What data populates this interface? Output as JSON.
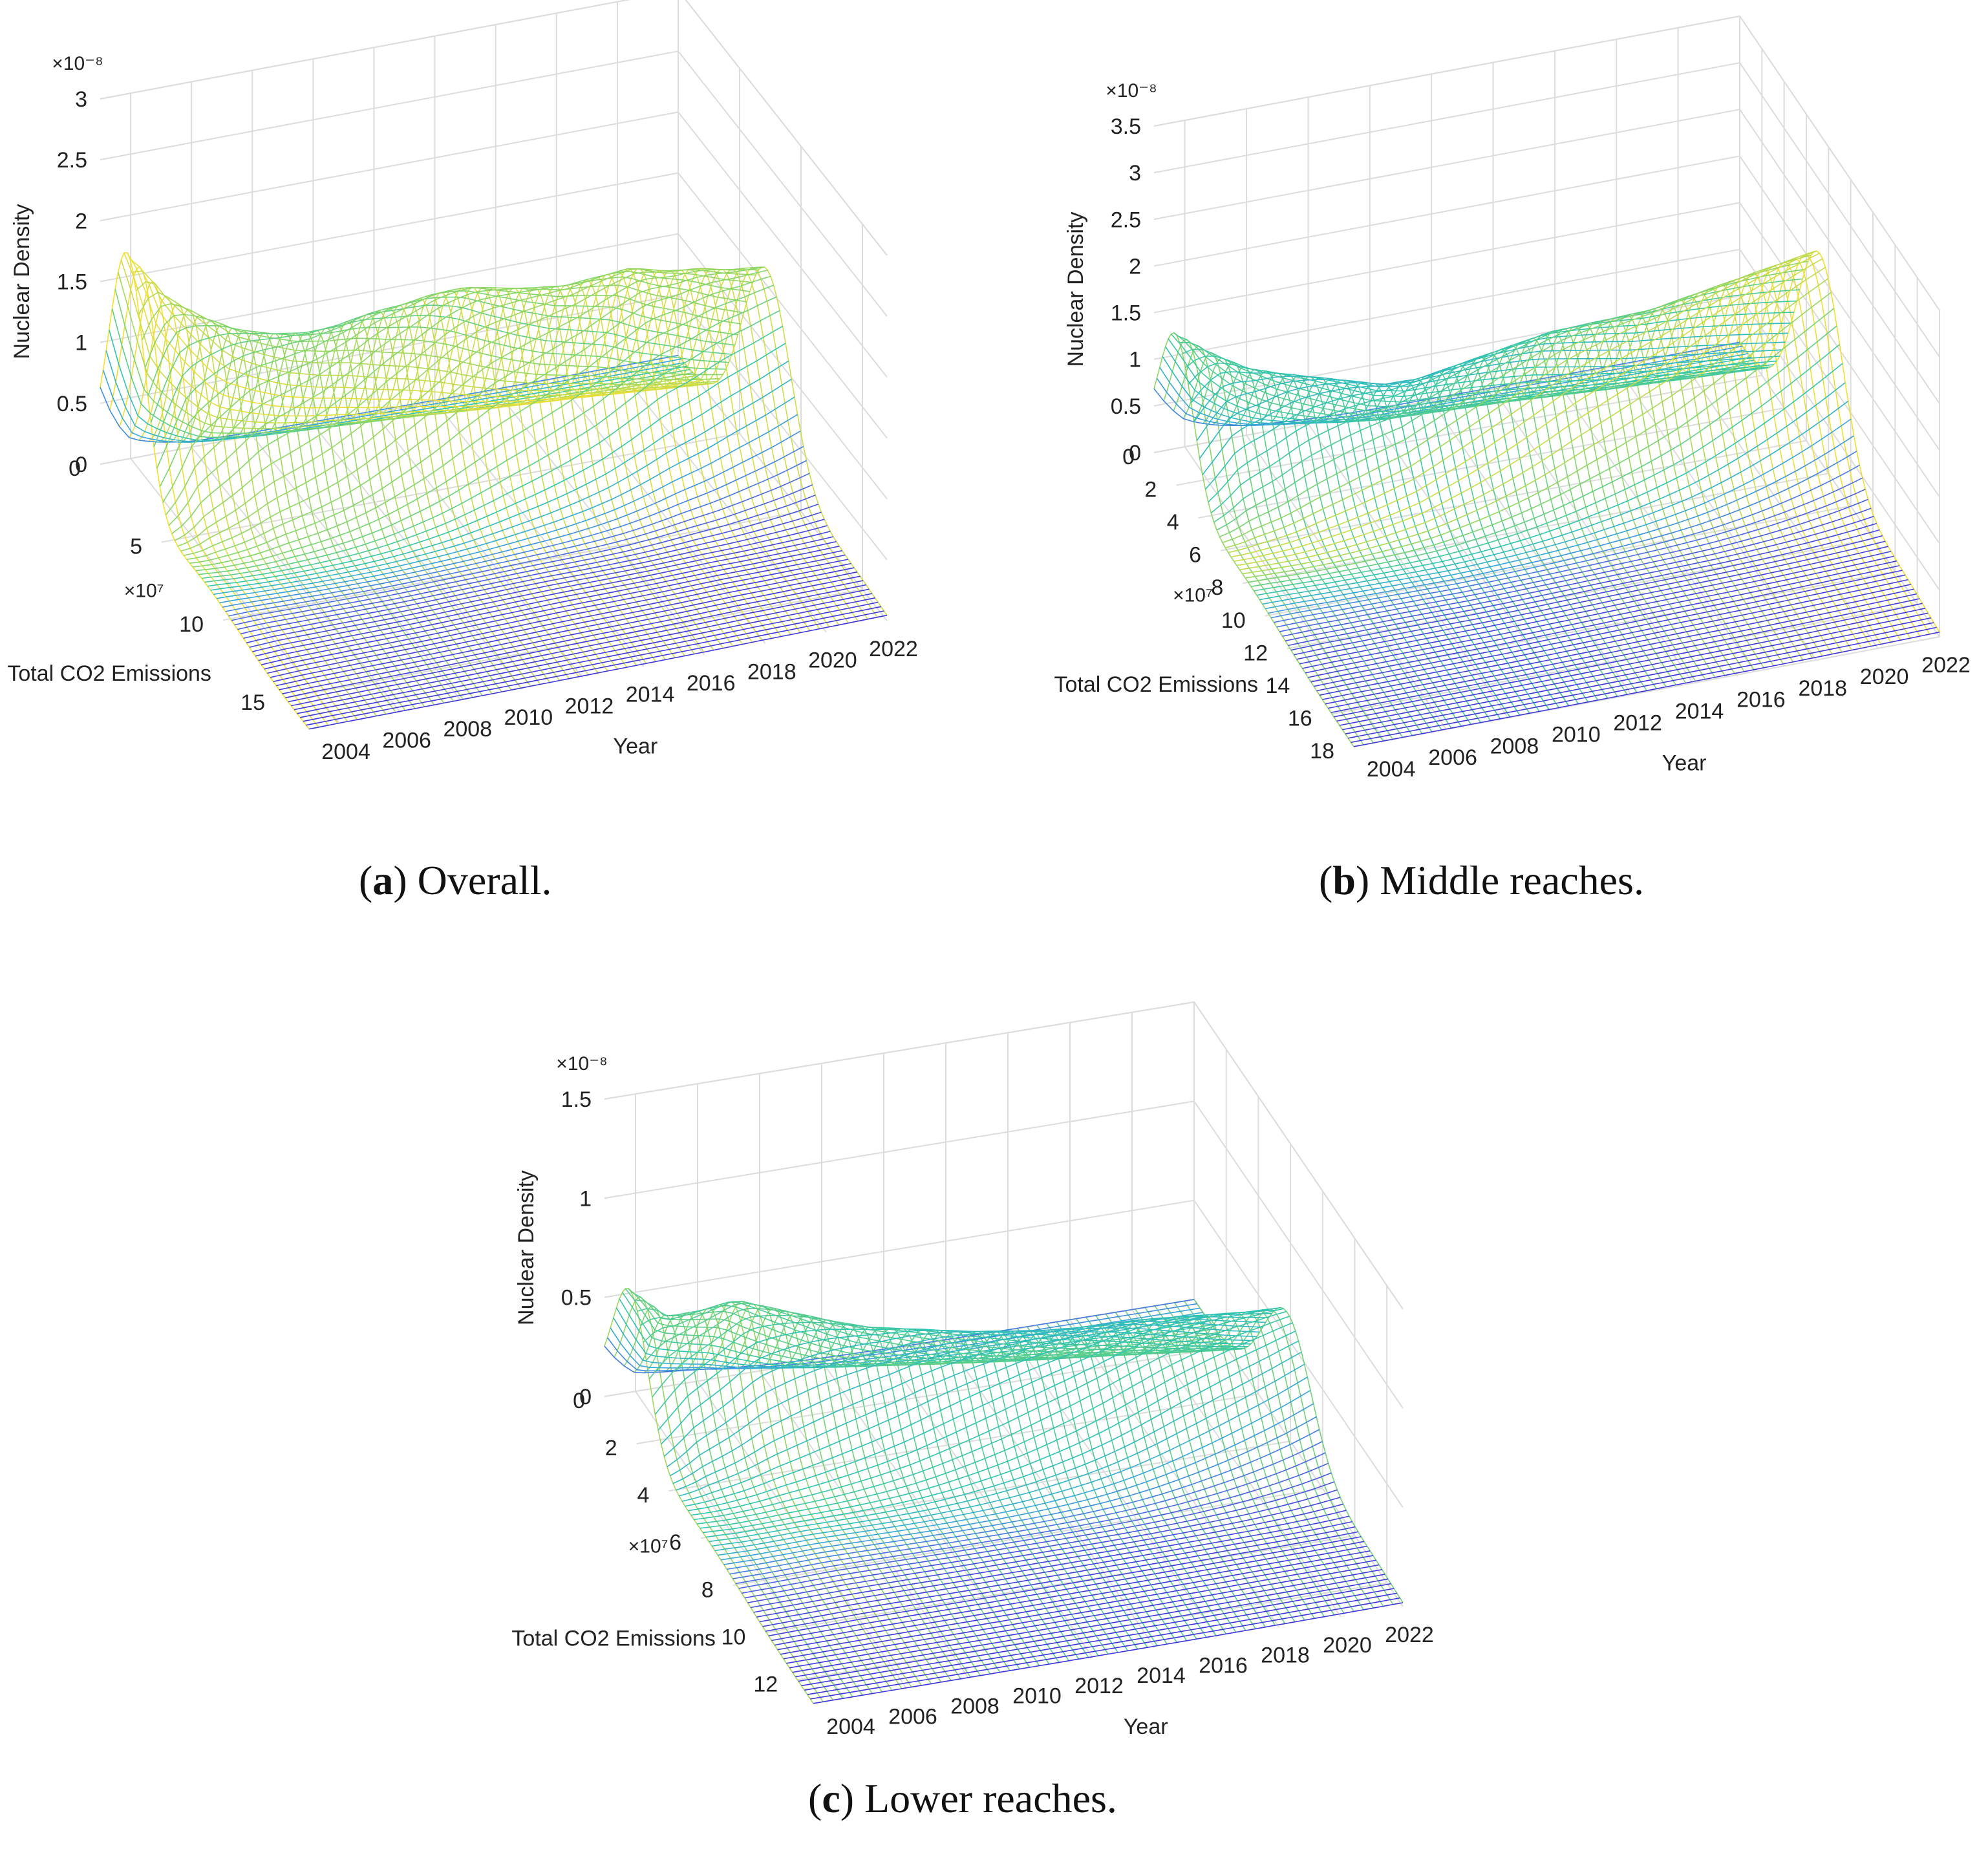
{
  "figure": {
    "captions": [
      {
        "letter": "a",
        "text": ") Overall."
      },
      {
        "letter": "b",
        "text": ") Middle reaches."
      },
      {
        "letter": "c",
        "text": ") Lower reaches."
      }
    ]
  },
  "colormap": [
    "#3b2fd6",
    "#4a6be0",
    "#35a6da",
    "#2ec4b0",
    "#7bd56b",
    "#e8de3a",
    "#ffe11a"
  ],
  "chart_data": [
    {
      "type": "surface",
      "panel": "a",
      "zlabel": "Nuclear Density",
      "ylabel": "Total CO2 Emissions",
      "xlabel": "Year",
      "z_exponent": "×10⁻⁸",
      "y_exponent": "×10⁷",
      "ztick_labels": [
        "0",
        "0.5",
        "1",
        "1.5",
        "2",
        "2.5",
        "3"
      ],
      "ytick_labels": [
        "0",
        "5",
        "10",
        "15"
      ],
      "xtick_labels": [
        "2004",
        "2006",
        "2008",
        "2010",
        "2012",
        "2014",
        "2016",
        "2018",
        "2020",
        "2022"
      ],
      "zlim": [
        0,
        3
      ],
      "ylim": [
        0,
        17
      ],
      "xlim": [
        2003,
        2022
      ],
      "peak_density": [
        2.0,
        1.7,
        1.55,
        1.45,
        1.4,
        1.38,
        1.42,
        1.5,
        1.55,
        1.62,
        1.65,
        1.62,
        1.6,
        1.6,
        1.65,
        1.7,
        1.65,
        1.65,
        1.62,
        1.62
      ],
      "peak_location": [
        2.2,
        3.2,
        3.6,
        4.0,
        4.2,
        4.4,
        4.6,
        4.8,
        5.0,
        5.2,
        5.4,
        5.6,
        5.8,
        6.0,
        6.2,
        6.4,
        6.6,
        6.8,
        7.0,
        7.2
      ]
    },
    {
      "type": "surface",
      "panel": "b",
      "zlabel": "Nuclear Density",
      "ylabel": "Total CO2 Emissions",
      "xlabel": "Year",
      "z_exponent": "×10⁻⁸",
      "y_exponent": "×10⁷",
      "ztick_labels": [
        "0",
        "0.5",
        "1",
        "1.5",
        "2",
        "2.5",
        "3",
        "3.5"
      ],
      "ytick_labels": [
        "0",
        "2",
        "4",
        "6",
        "8",
        "10",
        "12",
        "14",
        "16",
        "18"
      ],
      "xtick_labels": [
        "2004",
        "2006",
        "2008",
        "2010",
        "2012",
        "2014",
        "2016",
        "2018",
        "2020",
        "2022"
      ],
      "zlim": [
        0,
        3.5
      ],
      "ylim": [
        0,
        18
      ],
      "xlim": [
        2003,
        2022
      ],
      "peak_density": [
        1.6,
        1.45,
        1.3,
        1.25,
        1.2,
        1.15,
        1.1,
        1.15,
        1.25,
        1.35,
        1.45,
        1.55,
        1.6,
        1.65,
        1.7,
        1.8,
        1.9,
        2.0,
        2.1,
        2.2
      ],
      "peak_location": [
        2.0,
        2.8,
        3.2,
        3.6,
        3.9,
        4.2,
        4.5,
        4.8,
        5.0,
        5.2,
        5.4,
        5.6,
        5.8,
        6.0,
        6.2,
        6.4,
        6.6,
        6.8,
        7.0,
        7.2
      ]
    },
    {
      "type": "surface",
      "panel": "c",
      "zlabel": "Nuclear Density",
      "ylabel": "Total CO2 Emissions",
      "xlabel": "Year",
      "z_exponent": "×10⁻⁸",
      "y_exponent": "×10⁷",
      "ztick_labels": [
        "0",
        "0.5",
        "1",
        "1.5"
      ],
      "ytick_labels": [
        "0",
        "2",
        "4",
        "6",
        "8",
        "10",
        "12"
      ],
      "xtick_labels": [
        "2004",
        "2006",
        "2008",
        "2010",
        "2012",
        "2014",
        "2016",
        "2018",
        "2020",
        "2022"
      ],
      "zlim": [
        0,
        1.5
      ],
      "ylim": [
        0,
        13
      ],
      "xlim": [
        2003,
        2022
      ],
      "peak_density": [
        0.72,
        0.62,
        0.65,
        0.7,
        0.66,
        0.62,
        0.58,
        0.55,
        0.54,
        0.53,
        0.52,
        0.52,
        0.52,
        0.53,
        0.55,
        0.57,
        0.58,
        0.59,
        0.6,
        0.62
      ],
      "peak_location": [
        1.6,
        2.2,
        2.4,
        2.6,
        2.8,
        3.0,
        3.2,
        3.4,
        3.6,
        3.8,
        4.0,
        4.2,
        4.4,
        4.6,
        4.8,
        5.0,
        5.2,
        5.4,
        5.6,
        5.8
      ]
    }
  ]
}
